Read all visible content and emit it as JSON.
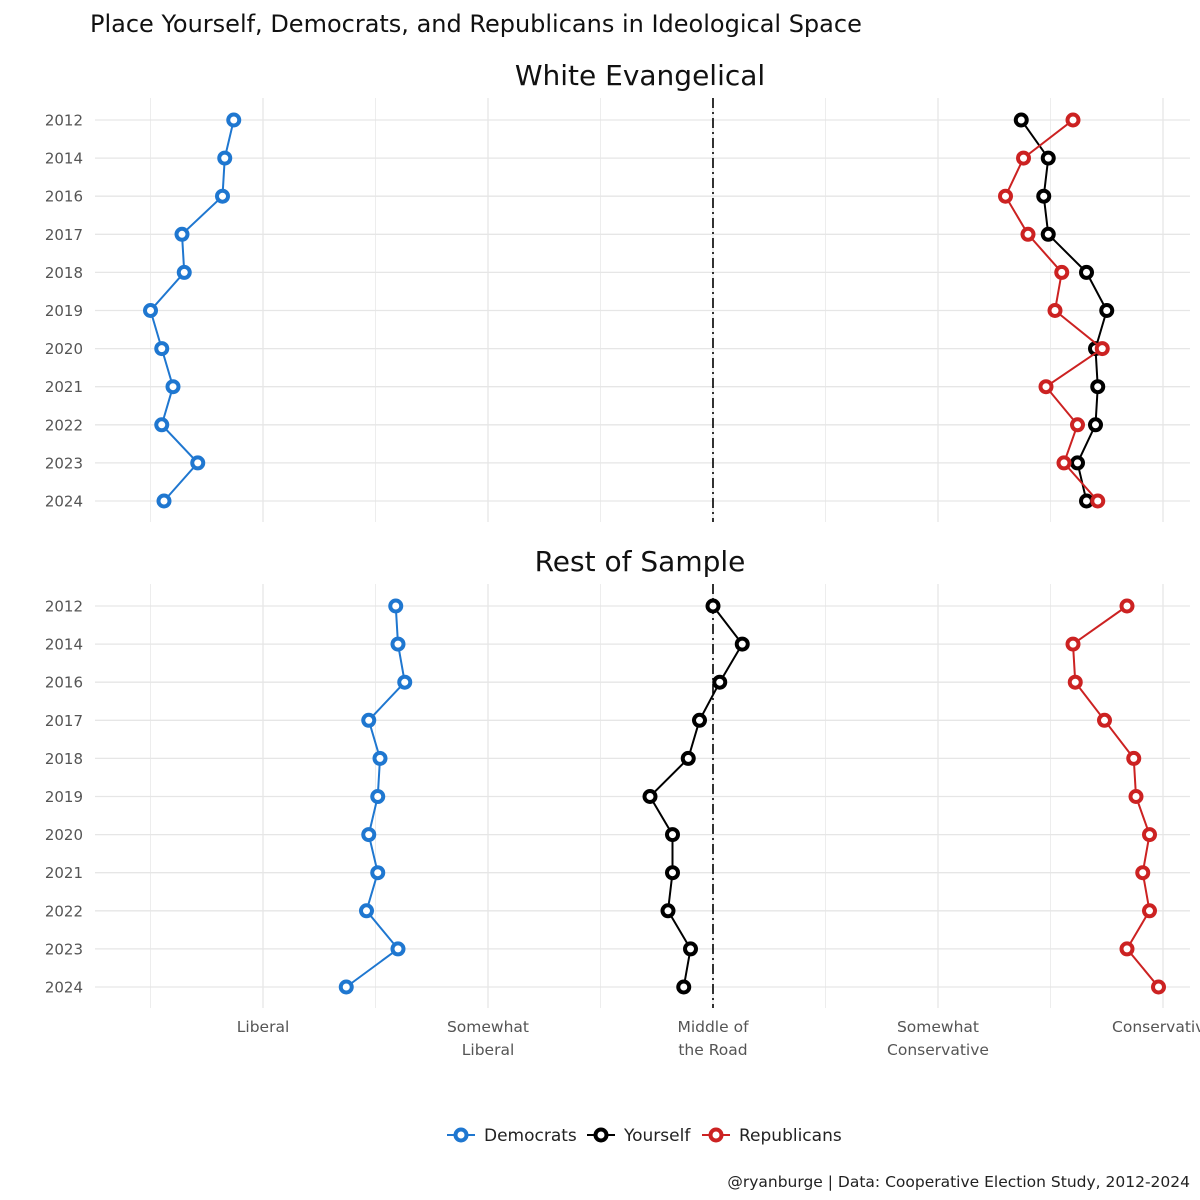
{
  "title": "Place Yourself, Democrats, and Republicans in Ideological Space",
  "caption": "@ryanburge | Data: Cooperative Election Study, 2012-2024",
  "colors": {
    "Democrats": "#1f77d0",
    "Yourself": "#000000",
    "Republicans": "#cc2222"
  },
  "legend": [
    "Democrats",
    "Yourself",
    "Republicans"
  ],
  "chart_data": {
    "type": "line",
    "xlabel": "",
    "ylabel": "",
    "xlim": [
      1.5,
      6.2
    ],
    "x_ticks": [
      {
        "value": 2,
        "label": "Liberal"
      },
      {
        "value": 3,
        "label": "Somewhat\nLiberal"
      },
      {
        "value": 4,
        "label": "Middle of\nthe Road"
      },
      {
        "value": 5,
        "label": "Somewhat\nConservative"
      },
      {
        "value": 6,
        "label": "Conservative"
      }
    ],
    "reference_line": {
      "x": 4,
      "style": "dash-dot"
    },
    "years": [
      "2012",
      "2014",
      "2016",
      "2017",
      "2018",
      "2019",
      "2020",
      "2021",
      "2022",
      "2023",
      "2024"
    ],
    "facets": [
      {
        "title": "White Evangelical",
        "series": [
          {
            "name": "Democrats",
            "values": [
              1.87,
              1.83,
              1.82,
              1.64,
              1.65,
              1.5,
              1.55,
              1.6,
              1.55,
              1.71,
              1.56
            ]
          },
          {
            "name": "Yourself",
            "values": [
              5.37,
              5.49,
              5.47,
              5.49,
              5.66,
              5.75,
              5.7,
              5.71,
              5.7,
              5.62,
              5.66
            ]
          },
          {
            "name": "Republicans",
            "values": [
              5.6,
              5.38,
              5.3,
              5.4,
              5.55,
              5.52,
              5.73,
              5.48,
              5.62,
              5.56,
              5.71
            ]
          }
        ]
      },
      {
        "title": "Rest of Sample",
        "series": [
          {
            "name": "Democrats",
            "values": [
              2.59,
              2.6,
              2.63,
              2.47,
              2.52,
              2.51,
              2.47,
              2.51,
              2.46,
              2.6,
              2.37
            ]
          },
          {
            "name": "Yourself",
            "values": [
              4.0,
              4.13,
              4.03,
              3.94,
              3.89,
              3.72,
              3.82,
              3.82,
              3.8,
              3.9,
              3.87
            ]
          },
          {
            "name": "Republicans",
            "values": [
              5.84,
              5.6,
              5.61,
              5.74,
              5.87,
              5.88,
              5.94,
              5.91,
              5.94,
              5.84,
              5.98
            ]
          }
        ]
      }
    ]
  }
}
